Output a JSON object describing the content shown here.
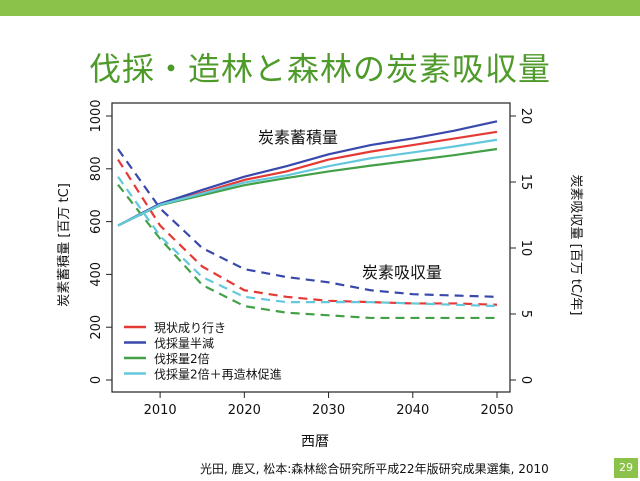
{
  "title": "伐採・造林と森林の炭素吸収量",
  "source": "光田, 鹿又, 松本:森林総合研究所平成22年版研究成果選集, 2010",
  "page_number": "29",
  "colors": {
    "accent": "#8bc34a",
    "title": "#4e9a2a"
  },
  "chart_data": {
    "type": "line",
    "xlabel": "西暦",
    "ylabel_left": "炭素蓄積量 [百万 tC]",
    "ylabel_right": "炭素吸収量 [百万 tC/年]",
    "xlim": [
      2005,
      2050
    ],
    "ylim_left": [
      0,
      1000
    ],
    "ylim_right": [
      0,
      20
    ],
    "x_ticks": [
      2010,
      2020,
      2030,
      2040,
      2050
    ],
    "y_ticks_left": [
      0,
      200,
      400,
      600,
      800,
      1000
    ],
    "y_ticks_right": [
      0,
      5,
      10,
      15,
      20
    ],
    "annotations": {
      "stock": "炭素蓄積量",
      "absorption": "炭素吸収量"
    },
    "x": [
      2005,
      2010,
      2015,
      2020,
      2025,
      2030,
      2035,
      2040,
      2045,
      2050
    ],
    "series": [
      {
        "name": "現状成り行き",
        "color": "#e53935",
        "stock": [
          585,
          665,
          710,
          758,
          790,
          835,
          865,
          890,
          915,
          940
        ],
        "absorption": [
          16.7,
          11.7,
          8.6,
          6.8,
          6.3,
          6.0,
          5.9,
          5.8,
          5.8,
          5.7
        ]
      },
      {
        "name": "伐採量半減",
        "color": "#3949ab",
        "stock": [
          585,
          668,
          720,
          770,
          810,
          855,
          890,
          915,
          945,
          980
        ],
        "absorption": [
          17.5,
          13.0,
          10.0,
          8.4,
          7.8,
          7.4,
          6.8,
          6.5,
          6.4,
          6.3
        ]
      },
      {
        "name": "伐採量2倍",
        "color": "#43a047",
        "stock": [
          585,
          662,
          700,
          738,
          765,
          790,
          812,
          832,
          852,
          875
        ],
        "absorption": [
          14.8,
          10.7,
          7.2,
          5.6,
          5.1,
          4.9,
          4.7,
          4.7,
          4.7,
          4.7
        ]
      },
      {
        "name": "伐採量2倍＋再造林促進",
        "color": "#64c8dc",
        "stock": [
          585,
          664,
          706,
          748,
          775,
          810,
          840,
          862,
          885,
          910
        ],
        "absorption": [
          15.4,
          10.9,
          7.8,
          6.3,
          5.9,
          5.9,
          5.9,
          5.8,
          5.7,
          5.6
        ]
      }
    ]
  }
}
